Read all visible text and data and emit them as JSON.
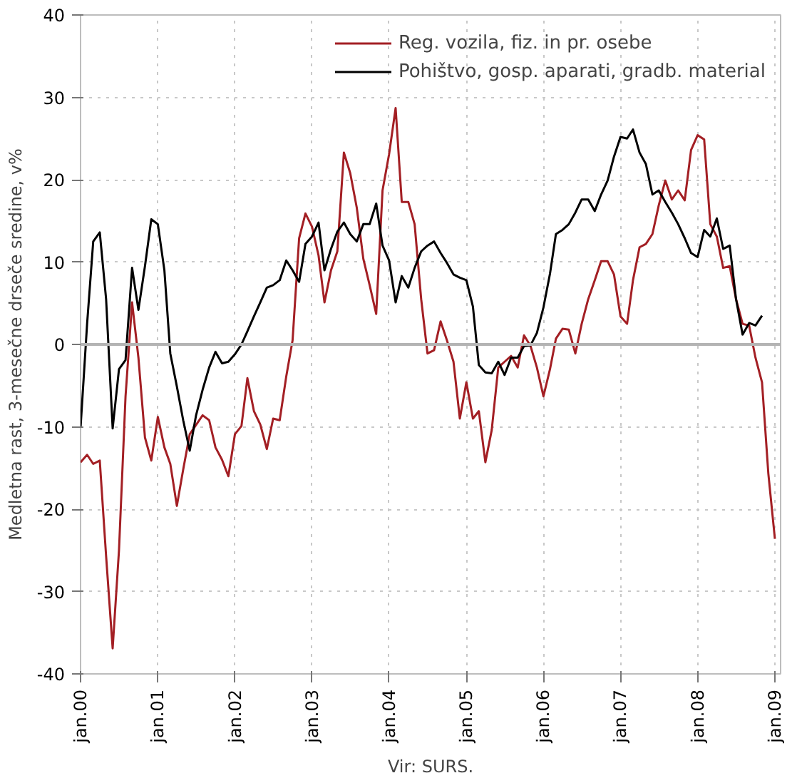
{
  "chart_data": {
    "type": "line",
    "ylabel": "Medletna rast, 3-mesečne drseče sredine, v%",
    "annotations": [
      "Vir: SURS."
    ],
    "xlim": [
      "2000-01",
      "2009-01-28"
    ],
    "ylim": [
      -40,
      40
    ],
    "xticks": [
      {
        "value": "2000-01",
        "label": "jan.00"
      },
      {
        "value": "2001-01",
        "label": "jan.01"
      },
      {
        "value": "2002-01",
        "label": "jan.02"
      },
      {
        "value": "2003-01",
        "label": "jan.03"
      },
      {
        "value": "2004-01",
        "label": "jan.04"
      },
      {
        "value": "2005-01",
        "label": "jan.05"
      },
      {
        "value": "2006-01",
        "label": "jan.06"
      },
      {
        "value": "2007-01",
        "label": "jan.07"
      },
      {
        "value": "2008-01",
        "label": "jan.08"
      },
      {
        "value": "2009-01",
        "label": "jan.09"
      }
    ],
    "yticks": [
      -40,
      -30,
      -20,
      -10,
      0,
      10,
      20,
      30,
      40
    ],
    "grid": true,
    "legend": "top right",
    "marker": "none",
    "line_style": "solid",
    "ref_lines": [
      {
        "axis": "y",
        "value": 0,
        "color": "#b4b4b4"
      }
    ],
    "series": [
      {
        "name": "Reg. vozila, fiz. in pr. osebe",
        "color": "#a31f24",
        "x": [
          "2000-01",
          "2000-02",
          "2000-03",
          "2000-04",
          "2000-05",
          "2000-06",
          "2000-07",
          "2000-08",
          "2000-09",
          "2000-10",
          "2000-11",
          "2000-12",
          "2001-01",
          "2001-02",
          "2001-03",
          "2001-04",
          "2001-05",
          "2001-06",
          "2001-08",
          "2001-09",
          "2001-10",
          "2001-11",
          "2001-12",
          "2002-01",
          "2002-02",
          "2002-03",
          "2002-04",
          "2002-05",
          "2002-06",
          "2002-07",
          "2002-08",
          "2002-09",
          "2002-10",
          "2002-11",
          "2002-12",
          "2003-01",
          "2003-02",
          "2003-03",
          "2003-04",
          "2003-05",
          "2003-06",
          "2003-07",
          "2003-08",
          "2003-09",
          "2003-10",
          "2003-11",
          "2003-12",
          "2004-01",
          "2004-02",
          "2004-03",
          "2004-04",
          "2004-05",
          "2004-06",
          "2004-07",
          "2004-08",
          "2004-09",
          "2004-10",
          "2004-11",
          "2004-12",
          "2005-01",
          "2005-02",
          "2005-03",
          "2005-04",
          "2005-05",
          "2005-06",
          "2005-07",
          "2005-08",
          "2005-09",
          "2005-10",
          "2005-11",
          "2005-12",
          "2006-01",
          "2006-02",
          "2006-03",
          "2006-04",
          "2006-05",
          "2006-06",
          "2006-07",
          "2006-08",
          "2006-09",
          "2006-10",
          "2006-11",
          "2006-12",
          "2007-01",
          "2007-02",
          "2007-03",
          "2007-04",
          "2007-05",
          "2007-06",
          "2007-07",
          "2007-08",
          "2007-09",
          "2007-10",
          "2007-11",
          "2007-12",
          "2008-01",
          "2008-02",
          "2008-03",
          "2008-04",
          "2008-05",
          "2008-06",
          "2008-07",
          "2008-08",
          "2008-09",
          "2008-10",
          "2008-11",
          "2008-12",
          "2009-01"
        ],
        "values": [
          -14.3,
          -13.4,
          -14.5,
          -14.1,
          -25.7,
          -36.9,
          -25,
          -6.3,
          5.1,
          -1.6,
          -11.3,
          -14.1,
          -8.8,
          -12.5,
          -14.5,
          -19.6,
          -15.2,
          -10.9,
          -8.6,
          -9.2,
          -12.5,
          -14.0,
          -16.0,
          -10.9,
          -9.9,
          -4.1,
          -8.1,
          -9.7,
          -12.7,
          -9.0,
          -9.2,
          -3.9,
          0.5,
          12.9,
          15.9,
          14.3,
          10.8,
          5.1,
          9.0,
          11.3,
          23.3,
          20.8,
          16.6,
          10.4,
          7.2,
          3.7,
          18.7,
          23.1,
          28.7,
          17.3,
          17.3,
          14.6,
          5.5,
          -1.1,
          -0.7,
          2.8,
          0.5,
          -2.1,
          -9.0,
          -4.6,
          -9.0,
          -8.1,
          -14.3,
          -10.4,
          -2.8,
          -2.1,
          -1.4,
          -2.8,
          1.1,
          -0.2,
          -2.8,
          -6.3,
          -3.0,
          0.7,
          1.9,
          1.8,
          -1.1,
          2.5,
          5.5,
          7.8,
          10.1,
          10.1,
          8.5,
          3.4,
          2.5,
          7.8,
          11.8,
          12.2,
          13.4,
          16.9,
          19.9,
          17.6,
          18.7,
          17.5,
          23.6,
          25.4,
          24.9,
          14.6,
          13.1,
          9.3,
          9.5,
          5.5,
          2.5,
          2.3,
          -1.6,
          -4.6,
          -15.7,
          -23.6
        ]
      },
      {
        "name": "Pohištvo, gosp. aparati, gradb. material",
        "color": "#000000",
        "x": [
          "2000-01",
          "2000-02",
          "2000-03",
          "2000-04",
          "2000-05",
          "2000-06",
          "2000-07",
          "2000-08",
          "2000-09",
          "2000-10",
          "2000-11",
          "2000-12",
          "2001-01",
          "2001-02",
          "2001-03",
          "2001-04",
          "2001-05",
          "2001-06",
          "2001-07",
          "2001-08",
          "2001-09",
          "2001-10",
          "2001-11",
          "2001-12",
          "2002-01",
          "2002-02",
          "2002-03",
          "2002-04",
          "2002-05",
          "2002-06",
          "2002-07",
          "2002-08",
          "2002-09",
          "2002-10",
          "2002-11",
          "2002-12",
          "2003-01",
          "2003-02",
          "2003-03",
          "2003-04",
          "2003-05",
          "2003-06",
          "2003-07",
          "2003-08",
          "2003-09",
          "2003-10",
          "2003-11",
          "2003-12",
          "2004-01",
          "2004-02",
          "2004-03",
          "2004-04",
          "2004-05",
          "2004-06",
          "2004-07",
          "2004-08",
          "2004-09",
          "2004-10",
          "2004-11",
          "2004-12",
          "2005-01",
          "2005-02",
          "2005-03",
          "2005-04",
          "2005-05",
          "2005-06",
          "2005-07",
          "2005-08",
          "2005-09",
          "2005-10",
          "2005-11",
          "2005-12",
          "2006-01",
          "2006-02",
          "2006-03",
          "2006-04",
          "2006-05",
          "2006-06",
          "2006-07",
          "2006-08",
          "2006-09",
          "2006-10",
          "2006-11",
          "2006-12",
          "2007-01",
          "2007-02",
          "2007-03",
          "2007-04",
          "2007-05",
          "2007-06",
          "2007-07",
          "2007-08",
          "2007-09",
          "2007-10",
          "2007-11",
          "2007-12",
          "2008-01",
          "2008-02",
          "2008-03",
          "2008-04",
          "2008-05",
          "2008-06",
          "2008-07",
          "2008-08",
          "2008-09",
          "2008-10",
          "2008-11"
        ],
        "values": [
          -10.1,
          2.5,
          12.5,
          13.6,
          5.5,
          -10.2,
          -3.0,
          -1.9,
          9.3,
          4.2,
          9.5,
          15.2,
          14.6,
          9.0,
          -1.1,
          -5.1,
          -9.2,
          -12.9,
          -8.6,
          -5.5,
          -2.8,
          -0.9,
          -2.3,
          -2.1,
          -1.2,
          0.0,
          1.6,
          3.4,
          5.1,
          6.9,
          7.2,
          7.8,
          10.2,
          9.0,
          7.6,
          12.2,
          13.1,
          14.8,
          9.0,
          11.6,
          13.7,
          14.8,
          13.4,
          12.5,
          14.6,
          14.6,
          17.1,
          12.0,
          10.2,
          5.1,
          8.3,
          6.9,
          9.3,
          11.3,
          12.0,
          12.5,
          11.1,
          9.9,
          8.5,
          8.1,
          7.8,
          4.6,
          -2.5,
          -3.4,
          -3.5,
          -2.1,
          -3.7,
          -1.6,
          -1.6,
          -0.2,
          -0.1,
          1.4,
          4.5,
          8.6,
          13.4,
          13.9,
          14.6,
          16.0,
          17.6,
          17.6,
          16.2,
          18.2,
          19.9,
          22.8,
          25.2,
          25.0,
          26.1,
          23.3,
          21.9,
          18.2,
          18.7,
          17.3,
          16.0,
          14.6,
          12.9,
          11.1,
          10.6,
          13.9,
          13.1,
          15.3,
          11.6,
          12.0,
          5.5,
          1.2,
          2.6,
          2.3,
          3.5
        ]
      }
    ]
  }
}
